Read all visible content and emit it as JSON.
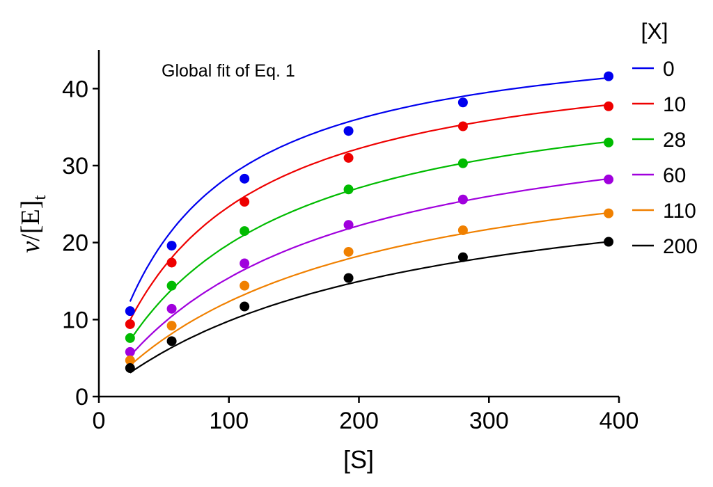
{
  "chart_data": {
    "type": "scatter",
    "annotation": "Global fit of Eq. 1",
    "xlabel": "[S]",
    "ylabel": {
      "main": "v",
      "sep": "/[E]",
      "sub": "t"
    },
    "xlim": [
      0,
      400
    ],
    "ylim": [
      0,
      45
    ],
    "xticks": [
      0,
      100,
      200,
      300,
      400
    ],
    "yticks": [
      0,
      10,
      20,
      30,
      40
    ],
    "grid": false,
    "legend_title": "[X]",
    "legend_position": "right",
    "x": [
      24,
      56,
      112,
      192,
      280,
      392
    ],
    "series": [
      {
        "name": "0",
        "color": "#0000ee",
        "values": [
          11.1,
          19.6,
          28.3,
          34.5,
          38.2,
          41.6
        ],
        "fit": {
          "vmax": 48.9,
          "km": 71.1
        }
      },
      {
        "name": "10",
        "color": "#ee0000",
        "values": [
          9.4,
          17.4,
          25.3,
          31.0,
          35.1,
          37.7
        ],
        "fit": {
          "vmax": 46.4,
          "km": 88.1
        }
      },
      {
        "name": "28",
        "color": "#00bb00",
        "values": [
          7.6,
          14.4,
          21.5,
          26.9,
          30.3,
          33.0
        ],
        "fit": {
          "vmax": 43.0,
          "km": 117.3
        }
      },
      {
        "name": "60",
        "color": "#a000dd",
        "values": [
          5.8,
          11.4,
          17.3,
          22.3,
          25.6,
          28.2
        ],
        "fit": {
          "vmax": 39.6,
          "km": 156.8
        }
      },
      {
        "name": "110",
        "color": "#f08000",
        "values": [
          4.7,
          9.2,
          14.4,
          18.8,
          21.6,
          23.8
        ],
        "fit": {
          "vmax": 35.1,
          "km": 184.6
        }
      },
      {
        "name": "200",
        "color": "#000000",
        "values": [
          3.7,
          7.2,
          11.7,
          15.4,
          18.1,
          20.1
        ],
        "fit": {
          "vmax": 31.4,
          "km": 220.0
        }
      }
    ]
  }
}
